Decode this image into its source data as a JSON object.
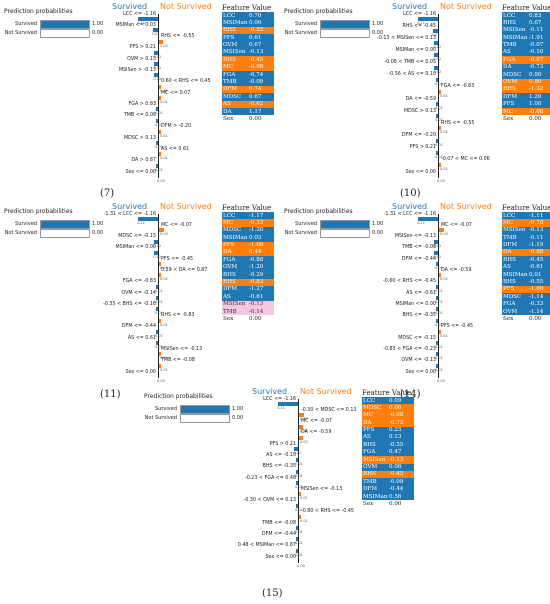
{
  "common": {
    "pp_title": "Prediction probabilities",
    "survived_label": "Survived",
    "not_survived_label": "Not Survived",
    "survived_prob": "1.00",
    "not_survived_prob": "0.00",
    "feature_header": "Feature",
    "value_header": "Value"
  },
  "panels": [
    {
      "caption": "(7)",
      "conditions": [
        {
          "text": "LCC <= -1.16",
          "side": "s",
          "w": 0.11
        },
        {
          "text": "MSIMan <= 0.03",
          "side": "s",
          "w": 0.03
        },
        {
          "text": "RHS <= -0.55",
          "side": "n",
          "w": 0.02
        },
        {
          "text": "PFS > 0.21",
          "side": "s",
          "w": 0.02
        },
        {
          "text": "OVM > 0.13",
          "side": "s",
          "w": 0.02
        },
        {
          "text": "MSISen > -0.13",
          "side": "s",
          "w": 0.02
        },
        {
          "text": "0.60 < RHS <= 0.45",
          "side": "n",
          "w": 0.01
        },
        {
          "text": "MC <= 0.07",
          "side": "n",
          "w": 0.01
        },
        {
          "text": "FGA > 0.83",
          "side": "s",
          "w": 0.01
        },
        {
          "text": "TMB <= 0.08",
          "side": "s",
          "w": 0.01
        },
        {
          "text": "DFM > -0.20",
          "side": "n",
          "w": 0.01
        },
        {
          "text": "MDSC > 0.13",
          "side": "s",
          "w": 0.01
        },
        {
          "text": "AS <= 0.61",
          "side": "n",
          "w": 0.01
        },
        {
          "text": "DA > 0.87",
          "side": "s",
          "w": 0.01
        },
        {
          "text": "Sex <= 0.00",
          "side": "s",
          "w": 0.0
        }
      ],
      "table": [
        {
          "f": "LCC",
          "v": "0.70",
          "c": "s"
        },
        {
          "f": "MSIMan",
          "v": "0.00",
          "c": "s"
        },
        {
          "f": "RHS",
          "v": "-0.55",
          "c": "n"
        },
        {
          "f": "PFS",
          "v": "0.61",
          "c": "s"
        },
        {
          "f": "OVM",
          "v": "0.67",
          "c": "s"
        },
        {
          "f": "MSISen",
          "v": "-0.13",
          "c": "s"
        },
        {
          "f": "RHS",
          "v": "-0.45",
          "c": "n"
        },
        {
          "f": "MC",
          "v": "-0.08",
          "c": "n"
        },
        {
          "f": "FGA",
          "v": "-0.74",
          "c": "s"
        },
        {
          "f": "TMB",
          "v": "-0.09",
          "c": "s"
        },
        {
          "f": "DFM",
          "v": "0.74",
          "c": "n"
        },
        {
          "f": "MDSC",
          "v": "0.67",
          "c": "s"
        },
        {
          "f": "AS",
          "v": "-0.62",
          "c": "n"
        },
        {
          "f": "DA",
          "v": "1.17",
          "c": "s"
        },
        {
          "f": "Sex",
          "v": "0.00",
          "c": "w"
        }
      ]
    },
    {
      "caption": "(10)",
      "conditions": [
        {
          "text": "LCC <= -1.16",
          "side": "s",
          "w": 0.11
        },
        {
          "text": "RHS <= -0.45",
          "side": "s",
          "w": 0.03
        },
        {
          "text": "-0.13 < MSISen <= 0.13",
          "side": "s",
          "w": 0.02
        },
        {
          "text": "MSIMan <= 0.00",
          "side": "s",
          "w": 0.02
        },
        {
          "text": "-0.08 < TMB <= 0.05",
          "side": "s",
          "w": 0.02
        },
        {
          "text": "-0.56 < AS <= 0.10",
          "side": "s",
          "w": 0.01
        },
        {
          "text": "FGA <= -0.83",
          "side": "n",
          "w": 0.01
        },
        {
          "text": "DA <= -0.59",
          "side": "s",
          "w": 0.01
        },
        {
          "text": "MDSC > 0.13",
          "side": "s",
          "w": 0.01
        },
        {
          "text": "RHS <= -0.55",
          "side": "n",
          "w": 0.01
        },
        {
          "text": "DFM <= -0.20",
          "side": "s",
          "w": 0.01
        },
        {
          "text": "PFS > 0.21",
          "side": "s",
          "w": 0.01
        },
        {
          "text": "-0.07 < MC <= 0.06",
          "side": "n",
          "w": 0.01
        },
        {
          "text": "Sex <= 0.00",
          "side": "s",
          "w": 0.0
        }
      ],
      "table": [
        {
          "f": "LCC",
          "v": "0.83",
          "c": "s"
        },
        {
          "f": "RHS",
          "v": "0.67",
          "c": "s"
        },
        {
          "f": "MSISen",
          "v": "-0.11",
          "c": "s"
        },
        {
          "f": "MSIMan",
          "v": "-1.91",
          "c": "s"
        },
        {
          "f": "TMB",
          "v": "-0.07",
          "c": "s"
        },
        {
          "f": "AS",
          "v": "-0.10",
          "c": "s"
        },
        {
          "f": "FGA",
          "v": "-0.87",
          "c": "n"
        },
        {
          "f": "DA",
          "v": "-0.73",
          "c": "s"
        },
        {
          "f": "MDSC",
          "v": "0.80",
          "c": "s"
        },
        {
          "f": "OVM",
          "v": "0.80",
          "c": "n"
        },
        {
          "f": "RHS",
          "v": "-1.32",
          "c": "n"
        },
        {
          "f": "DFM",
          "v": "1.20",
          "c": "s"
        },
        {
          "f": "PFS",
          "v": "1.00",
          "c": "s"
        },
        {
          "f": "MC",
          "v": "-0.06",
          "c": "n"
        },
        {
          "f": "Sex",
          "v": "0.00",
          "c": "w"
        }
      ]
    },
    {
      "caption": "(11)",
      "conditions": [
        {
          "text": "-1.31 < LCC <= -1.16",
          "side": "s",
          "w": 0.11
        },
        {
          "text": "MC <= -0.07",
          "side": "n",
          "w": 0.03
        },
        {
          "text": "MDSC <= -0.15",
          "side": "s",
          "w": 0.02
        },
        {
          "text": "MSIMan <= 0.00",
          "side": "s",
          "w": 0.02
        },
        {
          "text": "PFS <= -0.45",
          "side": "n",
          "w": 0.01
        },
        {
          "text": "0.29 < DA <= 0.87",
          "side": "n",
          "w": 0.01
        },
        {
          "text": "FGA <= -0.83",
          "side": "s",
          "w": 0.01
        },
        {
          "text": "OVM <= -0.14",
          "side": "s",
          "w": 0.01
        },
        {
          "text": "-0.35 < BHS <= -0.16",
          "side": "s",
          "w": 0.01
        },
        {
          "text": "RHS <= -0.83",
          "side": "n",
          "w": 0.01
        },
        {
          "text": "DFM <= -0.44",
          "side": "s",
          "w": 0.01
        },
        {
          "text": "AS <= 0.61",
          "side": "s",
          "w": 0.01
        },
        {
          "text": "MSISen <= -0.13",
          "side": "n",
          "w": 0.01
        },
        {
          "text": "TMB <= -0.08",
          "side": "n",
          "w": 0.01
        },
        {
          "text": "Sex <= 0.00",
          "side": "s",
          "w": 0.0
        }
      ],
      "table": [
        {
          "f": "LCC",
          "v": "-1.17",
          "c": "s"
        },
        {
          "f": "MC",
          "v": "-0.33",
          "c": "n"
        },
        {
          "f": "MDSC",
          "v": "-1.20",
          "c": "s"
        },
        {
          "f": "MSIMan",
          "v": "0.03",
          "c": "s"
        },
        {
          "f": "PFS",
          "v": "-1.09",
          "c": "n"
        },
        {
          "f": "DA",
          "v": "0.44",
          "c": "n"
        },
        {
          "f": "FGA",
          "v": "-0.88",
          "c": "s"
        },
        {
          "f": "OVM",
          "v": "-1.20",
          "c": "s"
        },
        {
          "f": "BHS",
          "v": "-0.29",
          "c": "s"
        },
        {
          "f": "RHS",
          "v": "-0.83",
          "c": "n"
        },
        {
          "f": "DFM",
          "v": "-1.27",
          "c": "s"
        },
        {
          "f": "AS",
          "v": "-0.61",
          "c": "s"
        },
        {
          "f": "MSISen",
          "v": "-0.13",
          "c": "p"
        },
        {
          "f": "TMB",
          "v": "-0.14",
          "c": "p"
        },
        {
          "f": "Sex",
          "v": "0.00",
          "c": "w"
        }
      ]
    },
    {
      "caption": "(14)",
      "conditions": [
        {
          "text": "-1.31 < LCC <= -1.16",
          "side": "s",
          "w": 0.11
        },
        {
          "text": "MC <= -0.07",
          "side": "n",
          "w": 0.03
        },
        {
          "text": "MSISen <= -0.13",
          "side": "s",
          "w": 0.02
        },
        {
          "text": "TMB <= -0.08",
          "side": "s",
          "w": 0.02
        },
        {
          "text": "DFM <= -0.44",
          "side": "s",
          "w": 0.01
        },
        {
          "text": "DA <= -0.59",
          "side": "n",
          "w": 0.01
        },
        {
          "text": "-0.60 < RHS <= -0.45",
          "side": "s",
          "w": 0.01
        },
        {
          "text": "AS <= -0.61",
          "side": "s",
          "w": 0.01
        },
        {
          "text": "MSIMan <= 0.00",
          "side": "s",
          "w": 0.01
        },
        {
          "text": "BHS <= -0.35",
          "side": "s",
          "w": 0.01
        },
        {
          "text": "PFS <= -0.45",
          "side": "n",
          "w": 0.01
        },
        {
          "text": "MDSC <= -0.15",
          "side": "s",
          "w": 0.01
        },
        {
          "text": "-0.83 < FGA <= -0.23",
          "side": "s",
          "w": 0.01
        },
        {
          "text": "OVM <= -0.13",
          "side": "s",
          "w": 0.01
        },
        {
          "text": "Sex <= 0.00",
          "side": "s",
          "w": 0.0
        }
      ],
      "table": [
        {
          "f": "LCC",
          "v": "-1.11",
          "c": "s"
        },
        {
          "f": "MC",
          "v": "-0.70",
          "c": "n"
        },
        {
          "f": "MSISen",
          "v": "-0.13",
          "c": "s"
        },
        {
          "f": "TMB",
          "v": "-0.11",
          "c": "s"
        },
        {
          "f": "DFM",
          "v": "-1.19",
          "c": "s"
        },
        {
          "f": "DA",
          "v": "-0.88",
          "c": "n"
        },
        {
          "f": "RHS",
          "v": "-0.45",
          "c": "s"
        },
        {
          "f": "AS",
          "v": "-0.61",
          "c": "s"
        },
        {
          "f": "MSIMan",
          "v": "0.01",
          "c": "s"
        },
        {
          "f": "BHS",
          "v": "-0.55",
          "c": "s"
        },
        {
          "f": "PFS",
          "v": "-1.00",
          "c": "n"
        },
        {
          "f": "MDSC",
          "v": "-1.14",
          "c": "s"
        },
        {
          "f": "FGA",
          "v": "-0.33",
          "c": "s"
        },
        {
          "f": "OVM",
          "v": "-1.14",
          "c": "s"
        },
        {
          "f": "Sex",
          "v": "0.00",
          "c": "w"
        }
      ]
    },
    {
      "caption": "(15)",
      "conditions": [
        {
          "text": "LCC <= -1.16",
          "side": "s",
          "w": 0.11
        },
        {
          "text": "-0.30 < MDSC <= 0.13",
          "side": "n",
          "w": 0.03
        },
        {
          "text": "MC <= -0.07",
          "side": "n",
          "w": 0.02
        },
        {
          "text": "DA <= -0.59",
          "side": "n",
          "w": 0.02
        },
        {
          "text": "PFS > 0.21",
          "side": "s",
          "w": 0.02
        },
        {
          "text": "AS <= -0.10",
          "side": "s",
          "w": 0.01
        },
        {
          "text": "BHS <= -0.35",
          "side": "s",
          "w": 0.01
        },
        {
          "text": "-0.23 < FGA <= 0.48",
          "side": "s",
          "w": 0.01
        },
        {
          "text": "MSISen <= -0.13",
          "side": "n",
          "w": 0.01
        },
        {
          "text": "-0.30 < OVM <= 0.13",
          "side": "s",
          "w": 0.01
        },
        {
          "text": "-0.80 < RHS <= -0.45",
          "side": "n",
          "w": 0.01
        },
        {
          "text": "TMB <= -0.08",
          "side": "s",
          "w": 0.01
        },
        {
          "text": "DFM <= -0.44",
          "side": "s",
          "w": 0.01
        },
        {
          "text": "0.48 < MSIMan <= 0.87",
          "side": "s",
          "w": 0.01
        },
        {
          "text": "Sex <= 0.00",
          "side": "s",
          "w": 0.0
        }
      ],
      "table": [
        {
          "f": "LCC",
          "v": "0.09",
          "c": "s"
        },
        {
          "f": "MDSC",
          "v": "0.06",
          "c": "n"
        },
        {
          "f": "MC",
          "v": "-0.08",
          "c": "n"
        },
        {
          "f": "DA",
          "v": "-0.73",
          "c": "n"
        },
        {
          "f": "PFS",
          "v": "0.23",
          "c": "s"
        },
        {
          "f": "AS",
          "v": "0.13",
          "c": "s"
        },
        {
          "f": "BHS",
          "v": "-0.55",
          "c": "s"
        },
        {
          "f": "FGA",
          "v": "0.47",
          "c": "s"
        },
        {
          "f": "MSISen",
          "v": "-0.13",
          "c": "n"
        },
        {
          "f": "OVM",
          "v": "0.06",
          "c": "s"
        },
        {
          "f": "RHS",
          "v": "-0.45",
          "c": "n"
        },
        {
          "f": "TMB",
          "v": "-0.09",
          "c": "s"
        },
        {
          "f": "DFM",
          "v": "-0.44",
          "c": "s"
        },
        {
          "f": "MSIMan",
          "v": "0.56",
          "c": "s"
        },
        {
          "f": "Sex",
          "v": "0.00",
          "c": "w"
        }
      ]
    }
  ]
}
